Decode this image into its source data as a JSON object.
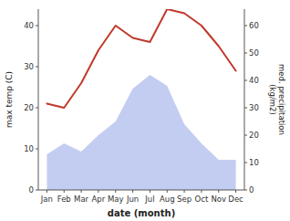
{
  "chart_data": {
    "type": "line",
    "xlabel": "date (month)",
    "ylabel": "max temp (C)",
    "y2label": "med. precipitation\n(kg/m2)",
    "categories": [
      "Jan",
      "Feb",
      "Mar",
      "Apr",
      "May",
      "Jun",
      "Jul",
      "Aug",
      "Sep",
      "Oct",
      "Nov",
      "Dec"
    ],
    "series": [
      {
        "type": "area",
        "axis": "y2",
        "color": "#b8c4ee",
        "values": [
          13,
          17,
          14,
          20,
          25,
          37,
          42,
          38,
          24,
          17,
          11,
          11
        ]
      },
      {
        "type": "line",
        "color": "#c0392b",
        "values": [
          21,
          20,
          26,
          34,
          40,
          37,
          36,
          44,
          43,
          40,
          35,
          29
        ]
      }
    ],
    "ylim": [
      0,
      44
    ],
    "yticks": [
      0,
      10,
      20,
      30,
      40
    ],
    "y2lim": [
      0,
      66
    ],
    "y2ticks": [
      0,
      10,
      20,
      30,
      40,
      50,
      60
    ],
    "grid": false
  }
}
